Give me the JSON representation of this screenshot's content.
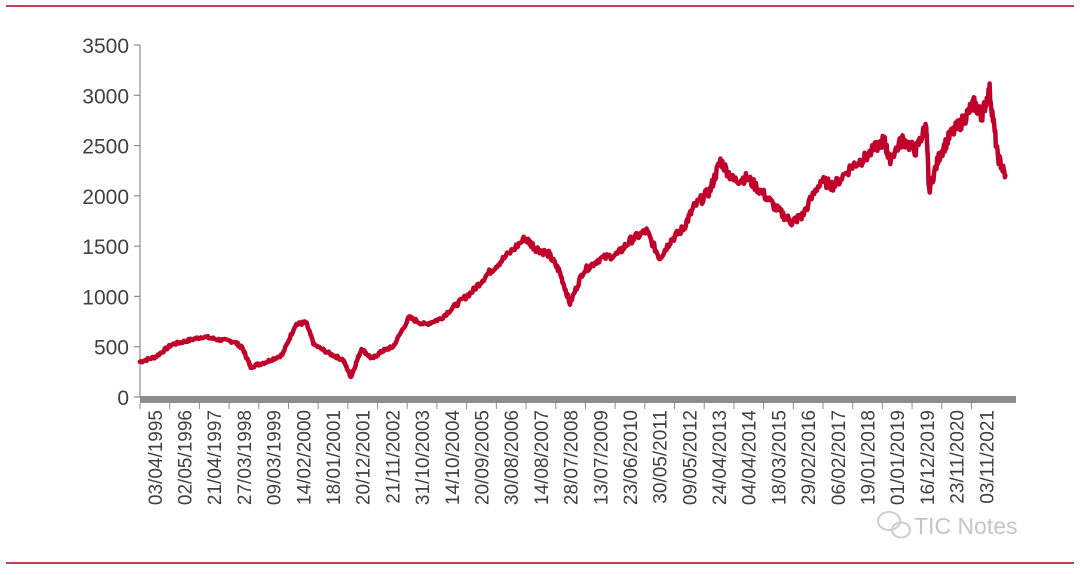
{
  "watermark": "TIC Notes",
  "colors": {
    "line": "#c0002a",
    "rule": "#b0001e",
    "axis": "#8c8c8c",
    "text": "#404040",
    "watermark": "#bfbfbf"
  },
  "chart_data": {
    "type": "line",
    "title": "",
    "xlabel": "",
    "ylabel": "",
    "ylim": [
      0,
      3500
    ],
    "yticks": [
      0,
      500,
      1000,
      1500,
      2000,
      2500,
      3000,
      3500
    ],
    "xlim": [
      "03/04/1995",
      "12/2022"
    ],
    "x_tick_labels": [
      "03/04/1995",
      "02/05/1996",
      "21/04/1997",
      "27/03/1998",
      "09/03/1999",
      "14/02/2000",
      "18/01/2001",
      "20/12/2001",
      "21/11/2002",
      "31/10/2003",
      "14/10/2004",
      "20/09/2005",
      "30/08/2006",
      "14/08/2007",
      "28/07/2008",
      "13/07/2009",
      "23/06/2010",
      "30/05/2011",
      "09/05/2012",
      "24/04/2013",
      "04/04/2014",
      "18/03/2015",
      "29/02/2016",
      "06/02/2017",
      "19/01/2018",
      "01/01/2019",
      "16/12/2019",
      "23/11/2020",
      "03/11/2021"
    ],
    "legend": "none",
    "grid": false,
    "series": [
      {
        "name": "",
        "color": "#c0002a",
        "x": [
          "1995-04",
          "1995-10",
          "1996-04",
          "1996-10",
          "1997-04",
          "1997-10",
          "1998-04",
          "1998-07",
          "1998-10",
          "1999-04",
          "1999-10",
          "2000-03",
          "2000-07",
          "2000-10",
          "2001-04",
          "2001-09",
          "2001-12",
          "2002-04",
          "2002-08",
          "2002-12",
          "2003-04",
          "2003-10",
          "2004-04",
          "2004-10",
          "2005-04",
          "2005-10",
          "2006-04",
          "2006-10",
          "2007-06",
          "2007-10",
          "2008-03",
          "2008-07",
          "2008-11",
          "2009-04",
          "2009-10",
          "2010-05",
          "2010-10",
          "2011-04",
          "2011-09",
          "2012-01",
          "2012-06",
          "2012-10",
          "2013-04",
          "2013-08",
          "2014-01",
          "2014-06",
          "2014-12",
          "2015-06",
          "2015-11",
          "2016-03",
          "2016-10",
          "2017-03",
          "2017-10",
          "2018-03",
          "2018-10",
          "2018-12",
          "2019-05",
          "2019-10",
          "2020-02",
          "2020-03",
          "2020-07",
          "2020-11",
          "2021-04",
          "2021-08",
          "2021-11",
          "2022-02",
          "2022-05",
          "2022-08"
        ],
        "y": [
          350,
          400,
          520,
          560,
          600,
          570,
          550,
          480,
          300,
          350,
          420,
          720,
          740,
          520,
          430,
          370,
          200,
          480,
          380,
          460,
          500,
          790,
          720,
          780,
          920,
          1050,
          1230,
          1380,
          1580,
          1480,
          1420,
          1250,
          930,
          1250,
          1370,
          1420,
          1560,
          1650,
          1380,
          1550,
          1680,
          1890,
          2050,
          2350,
          2150,
          2180,
          2030,
          1850,
          1740,
          1800,
          2150,
          2100,
          2300,
          2380,
          2560,
          2360,
          2560,
          2450,
          2700,
          2060,
          2400,
          2600,
          2750,
          2920,
          2800,
          3050,
          2400,
          2200
        ]
      }
    ]
  }
}
